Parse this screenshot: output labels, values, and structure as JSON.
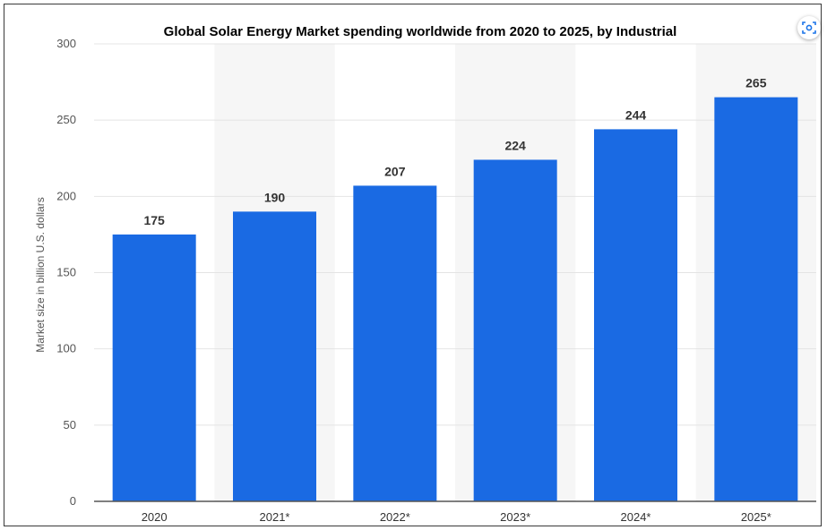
{
  "chart_data": {
    "type": "bar",
    "title": "Global Solar Energy Market spending worldwide from 2020 to 2025, by Industrial",
    "xlabel": "",
    "ylabel": "Market size in billion U.S. dollars",
    "categories": [
      "2020",
      "2021*",
      "2022*",
      "2023*",
      "2024*",
      "2025*"
    ],
    "values": [
      175,
      190,
      207,
      224,
      244,
      265
    ],
    "ylim": [
      0,
      300
    ],
    "yticks": [
      "0",
      "50",
      "100",
      "150",
      "200",
      "250",
      "300"
    ],
    "grid": true,
    "bar_color": "#1a6ae3",
    "alt_band_color": "#f6f6f6"
  },
  "toolbar": {
    "visual_search_icon": "lens-icon"
  }
}
